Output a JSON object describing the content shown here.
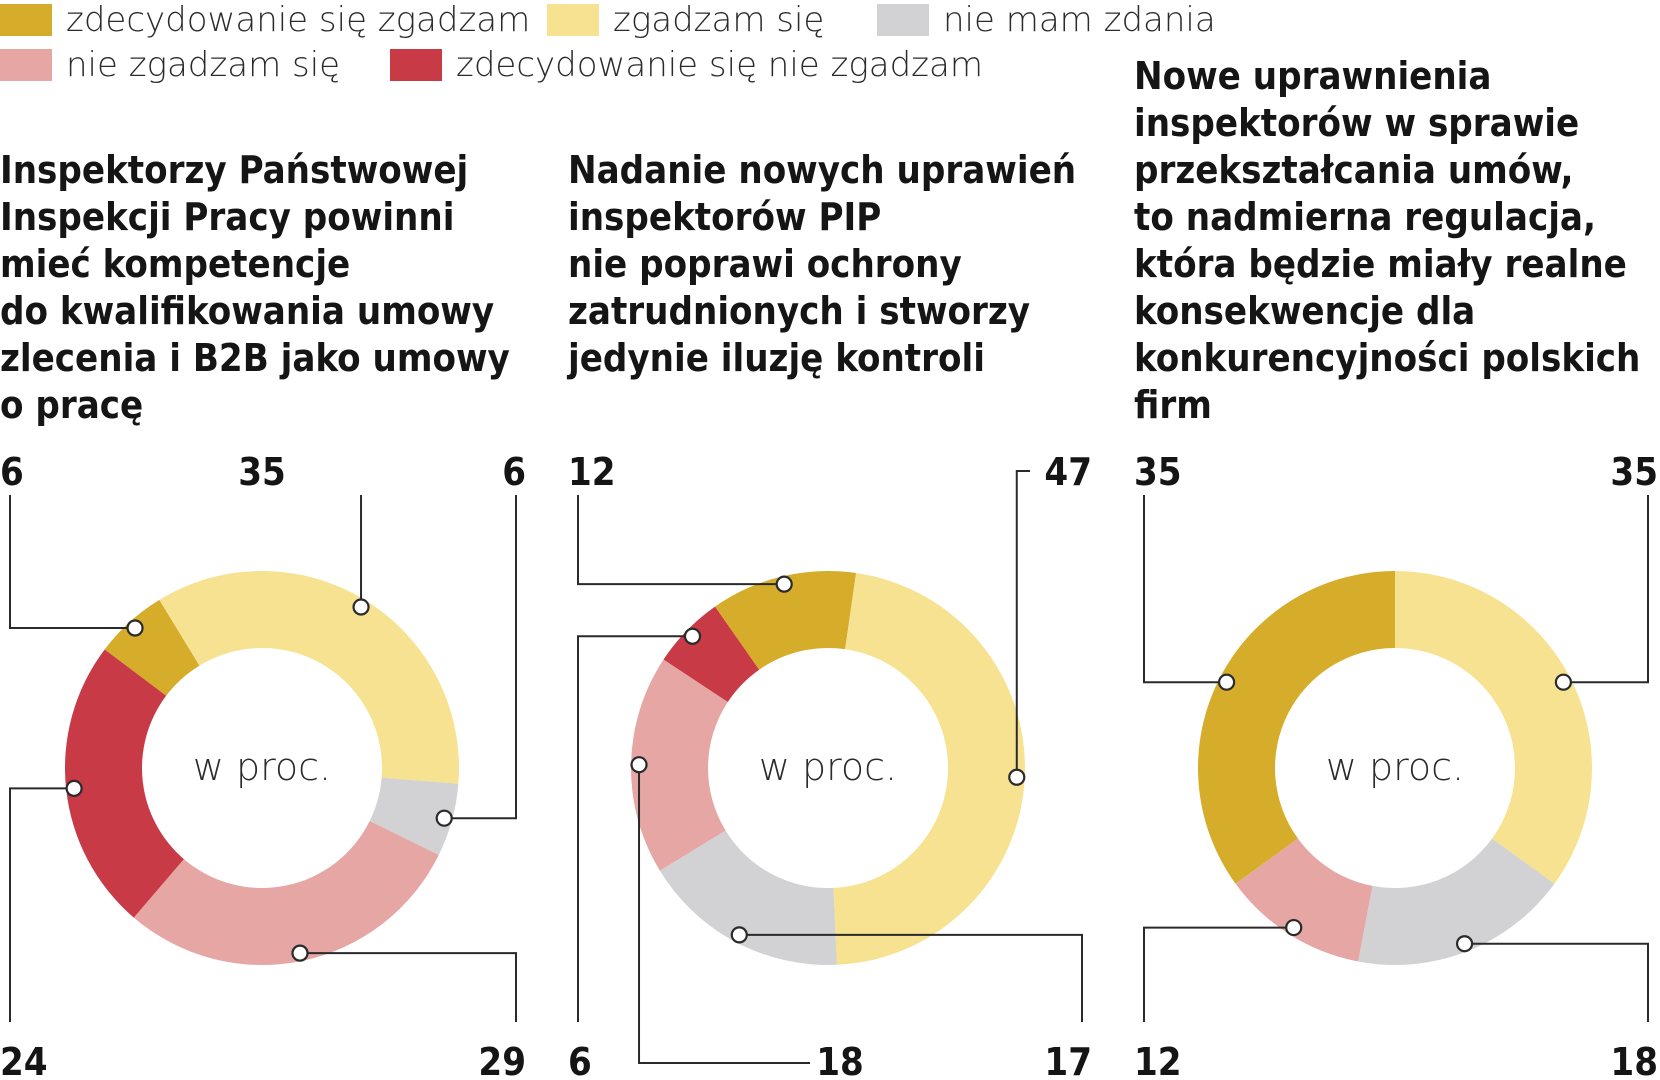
{
  "legend": [
    {
      "label": "zdecydowanie się zgadzam",
      "color": "#d5ad2b"
    },
    {
      "label": "zgadzam się",
      "color": "#f7e291"
    },
    {
      "label": "nie mam zdania",
      "color": "#d2d2d4"
    },
    {
      "label": "nie zgadzam się",
      "color": "#e5a6a4"
    },
    {
      "label": "zdecydowanie się nie zgadzam",
      "color": "#c83a45"
    }
  ],
  "center_label": "w proc.",
  "charts": [
    {
      "title_lines": [
        "Inspektorzy Państwowej",
        "Inspekcji Pracy powinni",
        "mieć kompetencje",
        "do kwalifikowania umowy",
        "zlecenia i B2B jako umowy",
        "o pracę"
      ]
    },
    {
      "title_lines": [
        "Nadanie nowych uprawień",
        "inspektorów PIP",
        "nie poprawi ochrony",
        "zatrudnionych i stworzy",
        "jedynie iluzję kontroli"
      ]
    },
    {
      "title_lines": [
        "Nowe uprawnienia",
        "inspektorów w sprawie",
        "przekształcania umów,",
        "to nadmierna regulacja,",
        "która będzie miały realne",
        "konsekwencje dla",
        "konkurencyjności polskich",
        "firm"
      ]
    }
  ],
  "chart_data": [
    {
      "type": "pie",
      "categories": [
        "zdecydowanie się zgadzam",
        "zgadzam się",
        "nie mam zdania",
        "nie zgadzam się",
        "zdecydowanie się nie zgadzam"
      ],
      "values": [
        6,
        35,
        6,
        29,
        24
      ],
      "unit": "w proc."
    },
    {
      "type": "pie",
      "categories": [
        "zdecydowanie się zgadzam",
        "zgadzam się",
        "nie mam zdania",
        "nie zgadzam się",
        "zdecydowanie się nie zgadzam"
      ],
      "values": [
        12,
        47,
        17,
        18,
        6
      ],
      "unit": "w proc."
    },
    {
      "type": "pie",
      "categories": [
        "zdecydowanie się zgadzam",
        "zgadzam się",
        "nie mam zdania",
        "nie zgadzam się"
      ],
      "values": [
        35,
        35,
        18,
        12
      ],
      "unit": "w proc."
    }
  ]
}
